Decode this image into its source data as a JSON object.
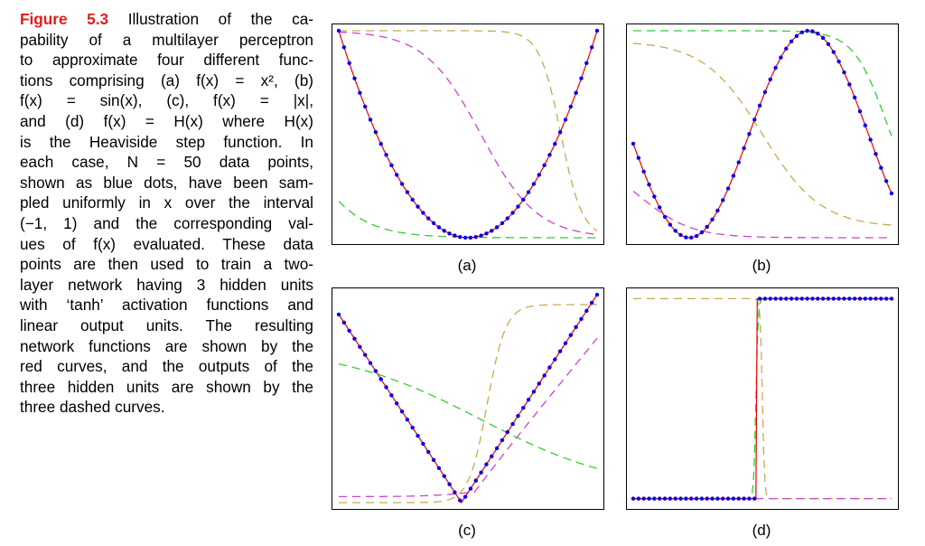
{
  "caption": {
    "figure_label": "Figure 5.3",
    "lines": [
      "Illustration of the ca-",
      "pability of a multilayer perceptron",
      "to approximate four different func-",
      "tions comprising (a) f(x) = x², (b)",
      "f(x) = sin(x), (c), f(x) = |x|,",
      "and (d) f(x) = H(x) where H(x)",
      "is the Heaviside step function. In",
      "each case, N = 50 data points,",
      "shown as blue dots, have been sam-",
      "pled uniformly in x over the interval",
      "(−1, 1) and the corresponding val-",
      "ues of f(x) evaluated. These data",
      "points are then used to train a two-",
      "layer network having 3 hidden units",
      "with ‘tanh’ activation functions and",
      "linear output units. The resulting",
      "network functions are shown by the",
      "red curves, and the outputs of the",
      "three hidden units are shown by the",
      "three dashed curves."
    ]
  },
  "panels": [
    {
      "id": "a",
      "label": "(a)"
    },
    {
      "id": "b",
      "label": "(b)"
    },
    {
      "id": "c",
      "label": "(c)"
    },
    {
      "id": "d",
      "label": "(d)"
    }
  ],
  "chart_data": [
    {
      "type": "line",
      "label": "(a)",
      "function": "x^2",
      "n_points": 50,
      "xlim": [
        -1,
        1
      ],
      "series": [
        {
          "role": "data points",
          "color": "#0000ee"
        },
        {
          "role": "network output",
          "color": "#ee0000"
        },
        {
          "role": "hidden unit 1",
          "color": "#c8aa50",
          "style": "dashed"
        },
        {
          "role": "hidden unit 2",
          "color": "#cc44cc",
          "style": "dashed"
        },
        {
          "role": "hidden unit 3",
          "color": "#33cc33",
          "style": "dashed"
        }
      ]
    },
    {
      "type": "line",
      "label": "(b)",
      "function": "sin(x)",
      "n_points": 50,
      "xlim": [
        -1,
        1
      ]
    },
    {
      "type": "line",
      "label": "(c)",
      "function": "|x|",
      "n_points": 50,
      "xlim": [
        -1,
        1
      ]
    },
    {
      "type": "line",
      "label": "(d)",
      "function": "H(x)",
      "n_points": 50,
      "xlim": [
        -1,
        1
      ]
    }
  ],
  "colors": {
    "figure_label": "#e41a1c",
    "data": "#0000ee",
    "fit": "#ee0000",
    "hidden_olive": "#c8aa50",
    "hidden_magenta": "#cc44cc",
    "hidden_green": "#33cc33"
  }
}
